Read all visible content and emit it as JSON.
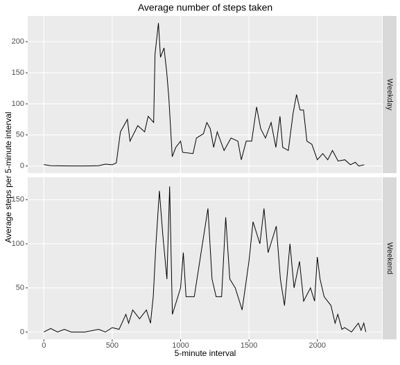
{
  "title": "Average number of steps taken",
  "x_label": "5-minute interval",
  "y_label": "Average steps per 5-minute interval",
  "chart_data": [
    {
      "type": "line",
      "strip": "Weekday",
      "color": "#000000",
      "grid": true,
      "xlim": [
        -118,
        2473
      ],
      "xticks": [
        0,
        500,
        1000,
        1500,
        2000
      ],
      "ylim": [
        -11.5,
        241.5
      ],
      "yticks": [
        0,
        50,
        100,
        150,
        200
      ],
      "x": [
        0,
        50,
        100,
        200,
        300,
        400,
        450,
        500,
        530,
        560,
        611,
        630,
        687,
        737,
        763,
        803,
        813,
        838,
        853,
        879,
        899,
        914,
        939,
        965,
        1000,
        1015,
        1091,
        1116,
        1167,
        1192,
        1217,
        1242,
        1268,
        1318,
        1369,
        1419,
        1444,
        1480,
        1520,
        1556,
        1586,
        1621,
        1662,
        1697,
        1727,
        1747,
        1788,
        1823,
        1848,
        1874,
        1899,
        1924,
        1960,
        2000,
        2040,
        2076,
        2111,
        2152,
        2202,
        2242,
        2278,
        2303,
        2343
      ],
      "values": [
        2.3,
        0.5,
        0.3,
        0,
        0,
        0.5,
        3,
        2,
        5,
        55,
        75,
        40,
        65,
        55,
        80,
        70,
        180,
        230,
        175,
        190,
        150,
        110,
        15,
        30,
        40,
        22,
        20,
        45,
        52,
        70,
        60,
        30,
        55,
        25,
        45,
        40,
        10,
        40,
        40,
        95,
        60,
        45,
        70,
        30,
        80,
        30,
        25,
        85,
        115,
        90,
        90,
        40,
        35,
        10,
        20,
        10,
        25,
        8,
        10,
        2,
        6,
        0,
        2
      ]
    },
    {
      "type": "line",
      "strip": "Weekend",
      "color": "#000000",
      "grid": true,
      "xlim": [
        -118,
        2473
      ],
      "xticks": [
        0,
        500,
        1000,
        1500,
        2000
      ],
      "ylim": [
        -8.35,
        175.35
      ],
      "yticks": [
        0,
        50,
        100,
        150
      ],
      "x": [
        0,
        50,
        100,
        150,
        200,
        300,
        400,
        450,
        500,
        550,
        600,
        620,
        650,
        700,
        750,
        780,
        800,
        820,
        845,
        870,
        900,
        920,
        940,
        960,
        1000,
        1020,
        1040,
        1100,
        1150,
        1200,
        1230,
        1260,
        1300,
        1330,
        1360,
        1400,
        1450,
        1500,
        1530,
        1580,
        1610,
        1640,
        1700,
        1730,
        1760,
        1800,
        1830,
        1870,
        1900,
        1950,
        1980,
        2000,
        2020,
        2050,
        2100,
        2130,
        2150,
        2180,
        2200,
        2250,
        2300,
        2320,
        2340,
        2355
      ],
      "values": [
        0,
        4,
        0,
        3,
        0,
        0,
        3,
        0,
        5,
        3,
        20,
        10,
        25,
        15,
        25,
        10,
        40,
        100,
        160,
        110,
        60,
        165,
        20,
        30,
        50,
        90,
        40,
        40,
        90,
        140,
        60,
        40,
        40,
        130,
        60,
        50,
        25,
        80,
        125,
        100,
        140,
        90,
        120,
        60,
        30,
        100,
        50,
        80,
        35,
        50,
        35,
        85,
        60,
        40,
        30,
        10,
        20,
        3,
        5,
        0,
        10,
        2,
        10,
        0
      ]
    }
  ]
}
